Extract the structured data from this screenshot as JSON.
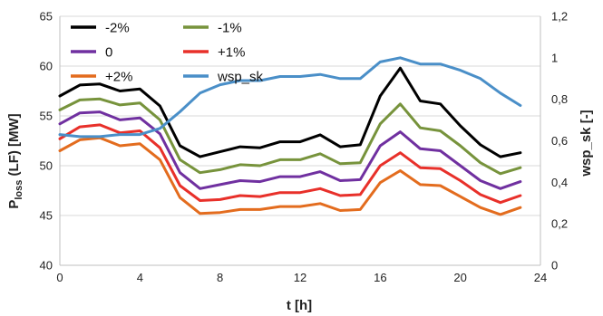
{
  "chart_data": {
    "type": "line",
    "xlabel": "t [h]",
    "ylabel_main": "P",
    "ylabel_sub": "loss",
    "ylabel_rest": " (LF) [MW]",
    "y2label": "wsp_sk [-]",
    "xlim": [
      0,
      24
    ],
    "ylim": [
      40,
      65
    ],
    "y2lim": [
      0,
      1.2
    ],
    "x_ticks": [
      "0",
      "4",
      "8",
      "12",
      "16",
      "20",
      "24"
    ],
    "y_ticks": [
      "40",
      "45",
      "50",
      "55",
      "60",
      "65"
    ],
    "y2_ticks": [
      "0",
      "0,2",
      "0,4",
      "0,6",
      "0,8",
      "1",
      "1,2"
    ],
    "grid": true,
    "legend_position": "top-left",
    "x": [
      0,
      1,
      2,
      3,
      4,
      5,
      6,
      7,
      8,
      9,
      10,
      11,
      12,
      13,
      14,
      15,
      16,
      17,
      18,
      19,
      20,
      21,
      22,
      23
    ],
    "series": [
      {
        "name": "-2%",
        "color": "#000000",
        "axis": "left",
        "values": [
          57.0,
          58.1,
          58.2,
          57.5,
          57.7,
          56.0,
          52.0,
          50.9,
          51.4,
          51.9,
          51.8,
          52.4,
          52.4,
          53.1,
          51.9,
          52.1,
          57.0,
          59.8,
          56.5,
          56.2,
          54.0,
          52.1,
          50.9,
          51.3
        ]
      },
      {
        "name": "-1%",
        "color": "#77933c",
        "axis": "left",
        "values": [
          55.6,
          56.6,
          56.7,
          56.1,
          56.3,
          54.6,
          50.6,
          49.3,
          49.6,
          50.1,
          50.0,
          50.6,
          50.6,
          51.2,
          50.2,
          50.3,
          54.2,
          56.2,
          53.8,
          53.5,
          52.0,
          50.3,
          49.2,
          49.8
        ]
      },
      {
        "name": "0",
        "color": "#7030a0",
        "axis": "left",
        "values": [
          54.2,
          55.3,
          55.4,
          54.6,
          54.8,
          53.2,
          49.3,
          47.7,
          48.1,
          48.5,
          48.4,
          48.9,
          48.9,
          49.4,
          48.5,
          48.6,
          52.0,
          53.4,
          51.7,
          51.5,
          50.0,
          48.5,
          47.7,
          48.4
        ]
      },
      {
        "name": "+1%",
        "color": "#e8302a",
        "axis": "left",
        "values": [
          52.7,
          53.9,
          54.1,
          53.3,
          53.5,
          51.8,
          48.0,
          46.5,
          46.6,
          47.0,
          46.9,
          47.3,
          47.3,
          47.7,
          47.0,
          47.1,
          50.0,
          51.3,
          49.8,
          49.7,
          48.5,
          47.1,
          46.3,
          47.0
        ]
      },
      {
        "name": "+2%",
        "color": "#e36c1e",
        "axis": "left",
        "values": [
          51.5,
          52.6,
          52.8,
          52.0,
          52.2,
          50.6,
          46.8,
          45.2,
          45.3,
          45.6,
          45.6,
          45.9,
          45.9,
          46.2,
          45.5,
          45.6,
          48.3,
          49.5,
          48.1,
          48.0,
          46.9,
          45.8,
          45.1,
          45.8
        ]
      },
      {
        "name": "wsp_sk",
        "color": "#4a8fc8",
        "axis": "right",
        "values": [
          0.63,
          0.62,
          0.62,
          0.63,
          0.63,
          0.66,
          0.74,
          0.83,
          0.87,
          0.89,
          0.89,
          0.91,
          0.91,
          0.92,
          0.9,
          0.9,
          0.98,
          1.0,
          0.97,
          0.97,
          0.94,
          0.9,
          0.83,
          0.77
        ]
      }
    ]
  }
}
